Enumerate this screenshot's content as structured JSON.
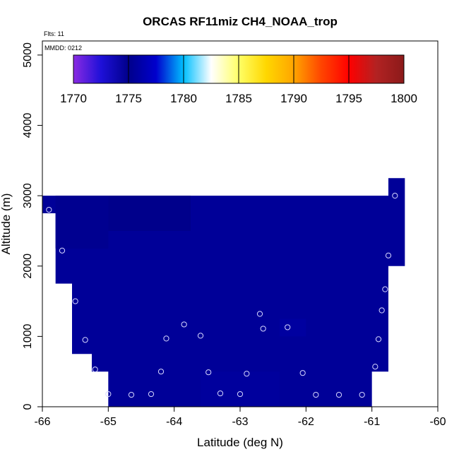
{
  "chart_data": {
    "type": "heatmap",
    "title": "ORCAS RF11miz CH4_NOAA_trop",
    "xlabel": "Latitude (deg N)",
    "ylabel": "Altitude (m)",
    "xlim": [
      -66,
      -60
    ],
    "ylim": [
      0,
      5200
    ],
    "x_ticks": [
      -66,
      -65,
      -64,
      -63,
      -62,
      -61,
      -60
    ],
    "y_ticks": [
      0,
      1000,
      2000,
      3000,
      4000,
      5000
    ],
    "x_tick_labels": [
      "-66",
      "-65",
      "-64",
      "-63",
      "-62",
      "-61",
      "-60"
    ],
    "y_tick_labels": [
      "0",
      "1000",
      "2000",
      "3000",
      "4000",
      "5000"
    ],
    "notes": {
      "flights": "Flts: 11",
      "date": "MMDD: 0212"
    },
    "colorbar": {
      "min": 1770,
      "max": 1800,
      "ticks": [
        1770,
        1775,
        1780,
        1785,
        1790,
        1795,
        1800
      ],
      "tick_labels": [
        "1770",
        "1775",
        "1780",
        "1785",
        "1790",
        "1795",
        "1800"
      ],
      "colors": [
        "#8a2be2",
        "#1e10d8",
        "#00008b",
        "#0000cd",
        "#00bfff",
        "#ffffff",
        "#ffff66",
        "#ffd700",
        "#ffa500",
        "#ff4500",
        "#ff0000",
        "#b22222",
        "#8b1a1a"
      ]
    },
    "fill_value": 1775.5,
    "fill_region": [
      [
        -66,
        2750
      ],
      [
        -65.8,
        2750
      ],
      [
        -65.8,
        1750
      ],
      [
        -65.55,
        1750
      ],
      [
        -65.55,
        750
      ],
      [
        -65.25,
        750
      ],
      [
        -65.25,
        500
      ],
      [
        -65.0,
        500
      ],
      [
        -65.0,
        0
      ],
      [
        -61.0,
        0
      ],
      [
        -61.0,
        500
      ],
      [
        -60.75,
        500
      ],
      [
        -60.75,
        2000
      ],
      [
        -60.5,
        2000
      ],
      [
        -60.5,
        3250
      ],
      [
        -60.75,
        3250
      ],
      [
        -60.75,
        3000
      ],
      [
        -66,
        3000
      ]
    ],
    "patches": [
      {
        "lat_min": -65.0,
        "lat_max": -63.75,
        "alt_min": 2500,
        "alt_max": 3000,
        "value": 1775.0
      },
      {
        "lat_min": -65.8,
        "lat_max": -65.0,
        "alt_min": 2250,
        "alt_max": 3000,
        "value": 1775.2
      },
      {
        "lat_min": -62.4,
        "lat_max": -62.0,
        "alt_min": 1000,
        "alt_max": 1250,
        "value": 1775.8
      },
      {
        "lat_min": -63.6,
        "lat_max": -62.4,
        "alt_min": 0,
        "alt_max": 500,
        "value": 1775.7
      }
    ],
    "points": [
      {
        "lat": -65.9,
        "alt": 2800
      },
      {
        "lat": -65.7,
        "alt": 2220
      },
      {
        "lat": -65.5,
        "alt": 1500
      },
      {
        "lat": -65.35,
        "alt": 950
      },
      {
        "lat": -65.2,
        "alt": 530
      },
      {
        "lat": -65.0,
        "alt": 180
      },
      {
        "lat": -64.65,
        "alt": 170
      },
      {
        "lat": -64.35,
        "alt": 180
      },
      {
        "lat": -64.2,
        "alt": 500
      },
      {
        "lat": -64.12,
        "alt": 970
      },
      {
        "lat": -63.85,
        "alt": 1170
      },
      {
        "lat": -63.6,
        "alt": 1010
      },
      {
        "lat": -63.48,
        "alt": 490
      },
      {
        "lat": -63.3,
        "alt": 190
      },
      {
        "lat": -63.0,
        "alt": 180
      },
      {
        "lat": -62.9,
        "alt": 470
      },
      {
        "lat": -62.7,
        "alt": 1320
      },
      {
        "lat": -62.65,
        "alt": 1110
      },
      {
        "lat": -62.28,
        "alt": 1130
      },
      {
        "lat": -62.05,
        "alt": 480
      },
      {
        "lat": -61.85,
        "alt": 170
      },
      {
        "lat": -61.5,
        "alt": 170
      },
      {
        "lat": -61.15,
        "alt": 170
      },
      {
        "lat": -60.95,
        "alt": 570
      },
      {
        "lat": -60.9,
        "alt": 960
      },
      {
        "lat": -60.85,
        "alt": 1370
      },
      {
        "lat": -60.8,
        "alt": 1670
      },
      {
        "lat": -60.75,
        "alt": 2150
      },
      {
        "lat": -60.65,
        "alt": 3000
      }
    ]
  }
}
